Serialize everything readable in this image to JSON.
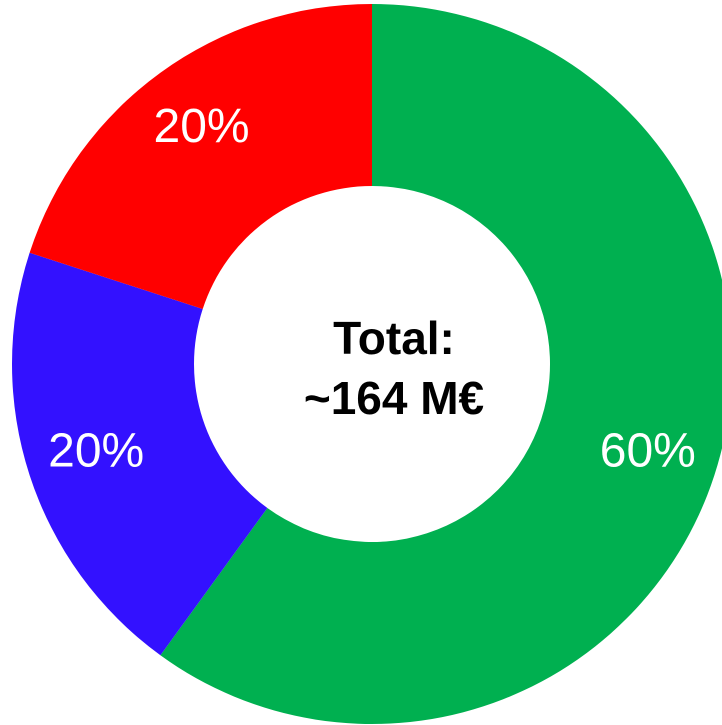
{
  "chart_data": {
    "type": "donut",
    "values": [
      60,
      20,
      20
    ],
    "value_labels": [
      "60%",
      "20%",
      "20%"
    ],
    "colors": [
      "#00b050",
      "#3311ff",
      "#ff0000"
    ],
    "annotations": [
      "Total:",
      "~164 M€"
    ]
  }
}
